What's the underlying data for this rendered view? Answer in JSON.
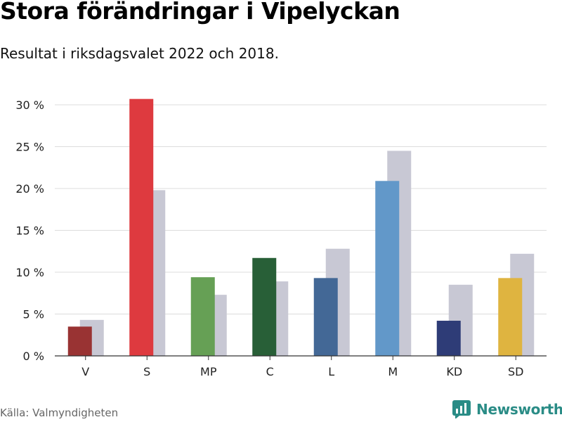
{
  "title": "Stora förändringar i Vipelyckan",
  "subtitle": "Resultat i riksdagsvalet 2022 och 2018.",
  "source": "Källa: Valmyndigheten",
  "brand": {
    "name": "Newsworthy",
    "color": "#2a8c86",
    "icon": "newsworthy-logo-icon"
  },
  "chart_data": {
    "type": "bar",
    "title": "",
    "xlabel": "",
    "ylabel": "",
    "ylim": [
      0,
      30
    ],
    "yticks": [
      0,
      5,
      10,
      15,
      20,
      25,
      30
    ],
    "ytick_labels": [
      "0 %",
      "5 %",
      "10 %",
      "15 %",
      "20 %",
      "25 %",
      "30 %"
    ],
    "grid": true,
    "legend": "none",
    "categories": [
      "V",
      "S",
      "MP",
      "C",
      "L",
      "M",
      "KD",
      "SD"
    ],
    "series": [
      {
        "values": [
          3.5,
          30.7,
          9.4,
          11.7,
          9.3,
          20.9,
          4.2,
          9.3
        ],
        "colors": [
          "#993333",
          "#de3a3f",
          "#66a055",
          "#285f37",
          "#436896",
          "#6298c9",
          "#2e3c77",
          "#dfb440"
        ]
      },
      {
        "values": [
          4.3,
          19.8,
          7.3,
          8.9,
          12.8,
          24.5,
          8.5,
          12.2
        ],
        "color": "#c8c8d4"
      }
    ]
  }
}
